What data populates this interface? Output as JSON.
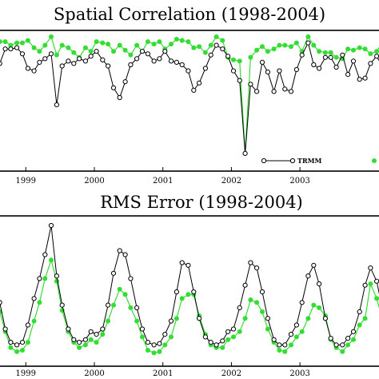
{
  "chart_data": [
    {
      "type": "line",
      "title": "Spatial Correlation (1998-2004)",
      "x_axis": {
        "range": [
          1998.6,
          2004.2
        ],
        "tick_labels": [
          "1999",
          "2000",
          "2001",
          "2002",
          "2003"
        ],
        "tick_values": [
          1999,
          2000,
          2001,
          2002,
          2003
        ]
      },
      "ylim": [
        0,
        1
      ],
      "grid": false,
      "legend": {
        "placement": "bottom-right",
        "entries": [
          "TRMM"
        ]
      },
      "series": [
        {
          "name": "TRMM",
          "color": "#000000",
          "marker": "open-circle",
          "x": [
            1998.62,
            1998.7,
            1998.78,
            1998.87,
            1998.95,
            1999.03,
            1999.12,
            1999.2,
            1999.28,
            1999.37,
            1999.45,
            1999.53,
            1999.62,
            1999.7,
            1999.78,
            1999.87,
            1999.95,
            2000.03,
            2000.12,
            2000.2,
            2000.28,
            2000.37,
            2000.45,
            2000.53,
            2000.62,
            2000.7,
            2000.78,
            2000.87,
            2000.95,
            2001.03,
            2001.12,
            2001.2,
            2001.28,
            2001.37,
            2001.45,
            2001.53,
            2001.62,
            2001.7,
            2001.78,
            2001.87,
            2001.95,
            2002.03,
            2002.12,
            2002.2,
            2002.28,
            2002.37,
            2002.45,
            2002.53,
            2002.62,
            2002.7,
            2002.78,
            2002.87,
            2002.95,
            2003.03,
            2003.12,
            2003.2,
            2003.28,
            2003.37,
            2003.45,
            2003.53,
            2003.62,
            2003.7,
            2003.78,
            2003.87,
            2003.95,
            2004.03,
            2004.12,
            2004.2
          ],
          "y": [
            0.78,
            0.9,
            0.9,
            0.91,
            0.86,
            0.74,
            0.72,
            0.79,
            0.82,
            0.86,
            0.44,
            0.76,
            0.8,
            0.78,
            0.82,
            0.8,
            0.84,
            0.88,
            0.81,
            0.76,
            0.58,
            0.5,
            0.63,
            0.77,
            0.82,
            0.88,
            0.86,
            0.8,
            0.82,
            0.88,
            0.8,
            0.79,
            0.77,
            0.72,
            0.56,
            0.62,
            0.74,
            0.85,
            0.93,
            0.9,
            0.84,
            0.72,
            0.64,
            0.04,
            0.61,
            0.55,
            0.79,
            0.71,
            0.55,
            0.72,
            0.57,
            0.55,
            0.73,
            0.85,
            0.95,
            0.77,
            0.74,
            0.83,
            0.83,
            0.75,
            0.85,
            0.69,
            0.8,
            0.65,
            0.66,
            0.78,
            0.84,
            0.76
          ]
        },
        {
          "name": "",
          "color": "#33dd33",
          "marker": "filled-circle",
          "x": [
            1998.62,
            1998.7,
            1998.78,
            1998.87,
            1998.95,
            1999.03,
            1999.12,
            1999.2,
            1999.28,
            1999.37,
            1999.45,
            1999.53,
            1999.62,
            1999.7,
            1999.78,
            1999.87,
            1999.95,
            2000.03,
            2000.12,
            2000.2,
            2000.28,
            2000.37,
            2000.45,
            2000.53,
            2000.62,
            2000.7,
            2000.78,
            2000.87,
            2000.95,
            2001.03,
            2001.12,
            2001.2,
            2001.28,
            2001.37,
            2001.45,
            2001.53,
            2001.62,
            2001.7,
            2001.78,
            2001.87,
            2001.95,
            2002.03,
            2002.12,
            2002.2,
            2002.28,
            2002.37,
            2002.45,
            2002.53,
            2002.62,
            2002.7,
            2002.78,
            2002.87,
            2002.95,
            2003.03,
            2003.12,
            2003.2,
            2003.28,
            2003.37,
            2003.45,
            2003.53,
            2003.62,
            2003.7,
            2003.78,
            2003.87,
            2003.95,
            2004.03,
            2004.12,
            2004.2
          ],
          "y": [
            0.96,
            0.96,
            0.93,
            0.95,
            0.95,
            0.97,
            0.91,
            0.88,
            0.93,
            1.0,
            0.85,
            0.93,
            0.91,
            0.87,
            0.83,
            0.91,
            0.88,
            0.96,
            0.95,
            0.94,
            0.88,
            0.93,
            0.89,
            0.85,
            0.93,
            0.88,
            0.96,
            0.94,
            0.96,
            0.9,
            0.94,
            0.98,
            0.97,
            0.96,
            0.91,
            0.92,
            0.87,
            0.93,
            1.0,
            0.97,
            0.83,
            0.81,
            0.8,
            0.04,
            0.83,
            0.89,
            0.92,
            0.88,
            0.9,
            0.93,
            0.93,
            0.92,
            0.95,
            0.88,
            1.0,
            0.93,
            0.88,
            0.87,
            0.87,
            0.83,
            0.82,
            0.9,
            0.89,
            0.91,
            0.9,
            0.86,
            0.88,
            0.95
          ]
        }
      ]
    },
    {
      "type": "line",
      "title": "RMS Error (1998-2004)",
      "x_axis": {
        "range": [
          1998.6,
          2004.2
        ],
        "tick_labels": [
          "1999",
          "2000",
          "2001",
          "2002",
          "2003"
        ],
        "tick_values": [
          1999,
          2000,
          2001,
          2002,
          2003
        ]
      },
      "ylim": [
        0,
        1
      ],
      "grid": false,
      "series": [
        {
          "name": "TRMM",
          "color": "#000000",
          "marker": "open-circle",
          "x": [
            1998.62,
            1998.7,
            1998.78,
            1998.87,
            1998.95,
            1999.03,
            1999.12,
            1999.2,
            1999.28,
            1999.37,
            1999.45,
            1999.53,
            1999.62,
            1999.7,
            1999.78,
            1999.87,
            1999.95,
            2000.03,
            2000.12,
            2000.2,
            2000.28,
            2000.37,
            2000.45,
            2000.53,
            2000.62,
            2000.7,
            2000.78,
            2000.87,
            2000.95,
            2001.03,
            2001.12,
            2001.2,
            2001.28,
            2001.37,
            2001.45,
            2001.53,
            2001.62,
            2001.7,
            2001.78,
            2001.87,
            2001.95,
            2002.03,
            2002.12,
            2002.2,
            2002.28,
            2002.37,
            2002.45,
            2002.53,
            2002.62,
            2002.7,
            2002.78,
            2002.87,
            2002.95,
            2003.03,
            2003.12,
            2003.2,
            2003.28,
            2003.37,
            2003.45,
            2003.53,
            2003.62,
            2003.7,
            2003.78,
            2003.87,
            2003.95,
            2004.03,
            2004.12,
            2004.2
          ],
          "y": [
            0.42,
            0.22,
            0.12,
            0.1,
            0.12,
            0.25,
            0.45,
            0.6,
            0.78,
            1.0,
            0.62,
            0.4,
            0.22,
            0.14,
            0.12,
            0.14,
            0.2,
            0.18,
            0.22,
            0.4,
            0.64,
            0.81,
            0.78,
            0.6,
            0.38,
            0.22,
            0.12,
            0.1,
            0.11,
            0.18,
            0.28,
            0.5,
            0.72,
            0.7,
            0.5,
            0.3,
            0.16,
            0.12,
            0.1,
            0.13,
            0.2,
            0.22,
            0.38,
            0.55,
            0.72,
            0.68,
            0.5,
            0.3,
            0.14,
            0.1,
            0.1,
            0.18,
            0.25,
            0.42,
            0.62,
            0.7,
            0.56,
            0.3,
            0.15,
            0.1,
            0.1,
            0.15,
            0.2,
            0.35,
            0.55,
            0.68,
            0.58,
            0.38
          ]
        },
        {
          "name": "",
          "color": "#33dd33",
          "marker": "filled-circle",
          "x": [
            1998.62,
            1998.7,
            1998.78,
            1998.87,
            1998.95,
            1999.03,
            1999.12,
            1999.2,
            1999.28,
            1999.37,
            1999.45,
            1999.53,
            1999.62,
            1999.7,
            1999.78,
            1999.87,
            1999.95,
            2000.03,
            2000.12,
            2000.2,
            2000.28,
            2000.37,
            2000.45,
            2000.53,
            2000.62,
            2000.7,
            2000.78,
            2000.87,
            2000.95,
            2001.03,
            2001.12,
            2001.2,
            2001.28,
            2001.37,
            2001.45,
            2001.53,
            2001.62,
            2001.7,
            2001.78,
            2001.87,
            2001.95,
            2002.03,
            2002.12,
            2002.2,
            2002.28,
            2002.37,
            2002.45,
            2002.53,
            2002.62,
            2002.7,
            2002.78,
            2002.87,
            2002.95,
            2003.03,
            2003.12,
            2003.2,
            2003.28,
            2003.37,
            2003.45,
            2003.53,
            2003.62,
            2003.7,
            2003.78,
            2003.87,
            2003.95,
            2004.03,
            2004.12,
            2004.2
          ],
          "y": [
            0.35,
            0.2,
            0.08,
            0.05,
            0.06,
            0.12,
            0.28,
            0.42,
            0.6,
            0.74,
            0.58,
            0.36,
            0.2,
            0.12,
            0.08,
            0.1,
            0.14,
            0.12,
            0.18,
            0.28,
            0.4,
            0.52,
            0.48,
            0.38,
            0.28,
            0.16,
            0.06,
            0.04,
            0.05,
            0.1,
            0.16,
            0.3,
            0.45,
            0.48,
            0.48,
            0.32,
            0.18,
            0.1,
            0.08,
            0.08,
            0.14,
            0.16,
            0.2,
            0.3,
            0.44,
            0.42,
            0.35,
            0.22,
            0.12,
            0.06,
            0.05,
            0.1,
            0.16,
            0.2,
            0.3,
            0.4,
            0.38,
            0.32,
            0.14,
            0.08,
            0.05,
            0.1,
            0.14,
            0.25,
            0.3,
            0.56,
            0.45,
            0.3
          ]
        }
      ]
    }
  ]
}
